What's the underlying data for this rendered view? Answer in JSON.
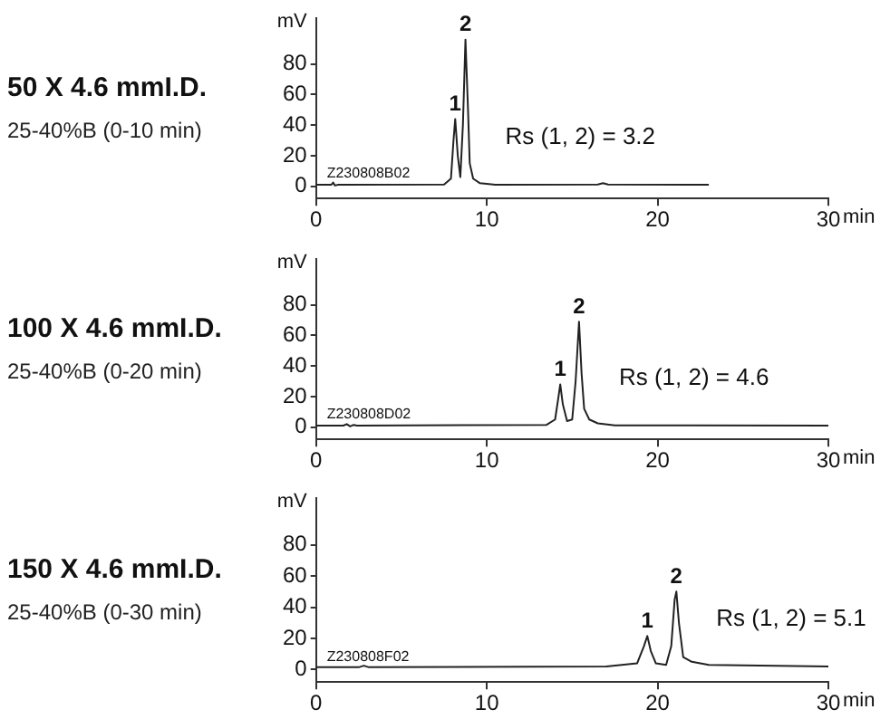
{
  "chart_data": [
    {
      "type": "line",
      "title": "50 X 4.6 mmI.D.",
      "subtitle": "25-40%B (0-10 min)",
      "xlabel": "min",
      "ylabel": "mV",
      "xlim": [
        0,
        30
      ],
      "xticks": [
        0,
        10,
        20,
        30
      ],
      "ylim": [
        -8,
        110
      ],
      "yticks": [
        0,
        20,
        40,
        60,
        80
      ],
      "grid": false,
      "legend": false,
      "marker": "none",
      "line_style": "solid",
      "series": [
        {
          "color": "#222222",
          "x": [
            0,
            0.9,
            1.0,
            1.1,
            1.3,
            7.5,
            7.9,
            8.05,
            8.15,
            8.3,
            8.45,
            8.6,
            8.75,
            8.9,
            9.0,
            9.2,
            9.6,
            10.5,
            16.5,
            16.8,
            17.1,
            23
          ],
          "values": [
            1,
            1,
            2.5,
            0.5,
            1,
            1.2,
            5,
            30,
            44,
            20,
            6,
            40,
            96,
            50,
            15,
            5,
            2,
            1,
            1.2,
            2,
            1.2,
            1
          ]
        }
      ],
      "annotations": [
        {
          "text": "1",
          "x": 8.15,
          "y": 44
        },
        {
          "text": "2",
          "x": 8.75,
          "y": 96
        },
        "Z230808B02",
        "Rs (1, 2) = 3.2"
      ]
    },
    {
      "type": "line",
      "title": "100 X 4.6 mmI.D.",
      "subtitle": "25-40%B (0-20 min)",
      "xlabel": "min",
      "ylabel": "mV",
      "xlim": [
        0,
        30
      ],
      "xticks": [
        0,
        10,
        20,
        30
      ],
      "ylim": [
        -8,
        110
      ],
      "yticks": [
        0,
        20,
        40,
        60,
        80
      ],
      "grid": false,
      "legend": false,
      "marker": "none",
      "line_style": "solid",
      "series": [
        {
          "color": "#222222",
          "x": [
            0,
            1.6,
            1.8,
            2.0,
            2.2,
            2.4,
            13.5,
            14.0,
            14.2,
            14.3,
            14.45,
            14.7,
            15.0,
            15.2,
            15.4,
            15.55,
            15.7,
            16.0,
            16.5,
            17.5,
            30
          ],
          "values": [
            1,
            1,
            2,
            0.5,
            1.5,
            1,
            1.5,
            5,
            20,
            28,
            15,
            4,
            5,
            30,
            69,
            35,
            12,
            5,
            2.5,
            1.2,
            1
          ]
        }
      ],
      "annotations": [
        {
          "text": "1",
          "x": 14.3,
          "y": 28
        },
        {
          "text": "2",
          "x": 15.4,
          "y": 69
        },
        "Z230808D02",
        "Rs (1, 2) = 4.6"
      ]
    },
    {
      "type": "line",
      "title": "150 X 4.6 mmI.D.",
      "subtitle": "25-40%B (0-30 min)",
      "xlabel": "min",
      "ylabel": "mV",
      "xlim": [
        0,
        30
      ],
      "xticks": [
        0,
        10,
        20,
        30
      ],
      "ylim": [
        -8,
        110
      ],
      "yticks": [
        0,
        20,
        40,
        60,
        80
      ],
      "grid": false,
      "legend": false,
      "marker": "none",
      "line_style": "solid",
      "series": [
        {
          "color": "#222222",
          "x": [
            0,
            2.5,
            2.8,
            3.1,
            17,
            18.8,
            19.2,
            19.4,
            19.6,
            19.9,
            20.5,
            20.8,
            21.0,
            21.1,
            21.25,
            21.5,
            22,
            23,
            30
          ],
          "values": [
            1.5,
            1.5,
            2.5,
            1.5,
            2,
            4,
            15,
            21.5,
            12,
            4,
            3,
            15,
            45,
            50,
            30,
            8,
            5,
            3,
            2
          ]
        }
      ],
      "annotations": [
        {
          "text": "1",
          "x": 19.4,
          "y": 21.5
        },
        {
          "text": "2",
          "x": 21.1,
          "y": 50
        },
        "Z230808F02",
        "Rs (1, 2) = 5.1"
      ]
    }
  ]
}
